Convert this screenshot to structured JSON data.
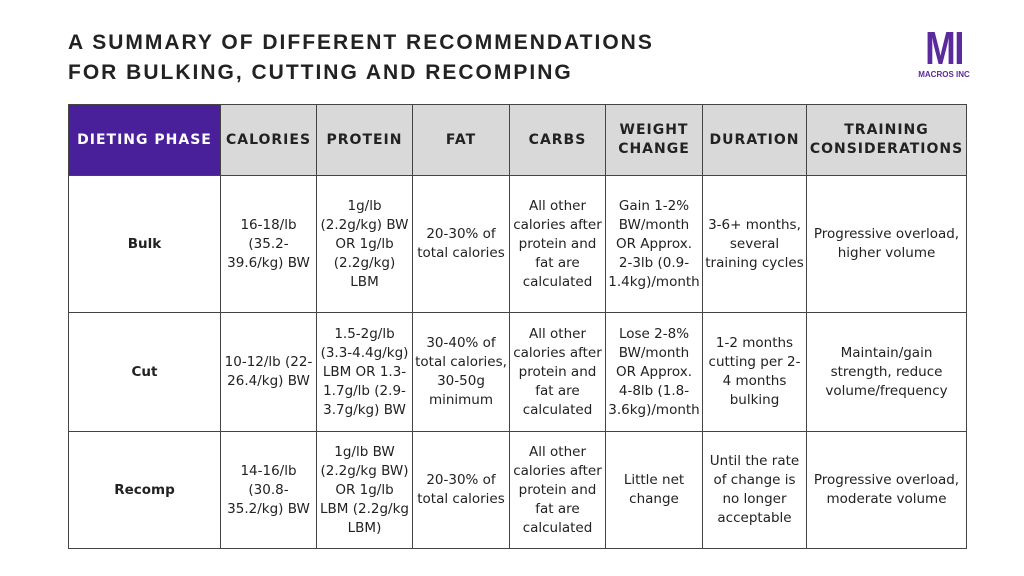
{
  "header": {
    "title_lines": [
      "A SUMMARY OF DIFFERENT RECOMMENDATIONS",
      "FOR BULKING, CUTTING AND RECOMPING"
    ],
    "logo": {
      "mark": "MI",
      "name": "MACROS INC"
    }
  },
  "table": {
    "columns": [
      "DIETING PHASE",
      "CALORIES",
      "PROTEIN",
      "FAT",
      "CARBS",
      "WEIGHT CHANGE",
      "DURATION",
      "TRAINING CONSIDERATIONS"
    ],
    "rows": [
      [
        "Bulk",
        "16-18/lb (35.2-39.6/kg) BW",
        "1g/lb (2.2g/kg) BW OR 1g/lb (2.2g/kg) LBM",
        "20-30% of total calories",
        "All other calories after protein and fat are calculated",
        "Gain 1-2% BW/month OR Approx. 2-3lb (0.9-1.4kg)/month",
        "3-6+ months, several training cycles",
        "Progressive overload, higher volume"
      ],
      [
        "Cut",
        "10-12/lb (22-26.4/kg) BW",
        "1.5-2g/lb (3.3-4.4g/kg) LBM OR 1.3-1.7g/lb (2.9-3.7g/kg) BW",
        "30-40% of total calories, 30-50g minimum",
        "All other calories after protein and fat are calculated",
        "Lose 2-8% BW/month OR Approx. 4-8lb (1.8-3.6kg)/month",
        "1-2 months cutting per 2-4 months bulking",
        "Maintain/gain strength, reduce volume/frequency"
      ],
      [
        "Recomp",
        "14-16/lb (30.8-35.2/kg) BW",
        "1g/lb BW (2.2g/kg BW) OR 1g/lb LBM (2.2g/kg LBM)",
        "20-30% of total calories",
        "All other calories after protein and fat are calculated",
        "Little net change",
        "Until the rate of change is no longer acceptable",
        "Progressive overload, moderate volume"
      ]
    ]
  }
}
